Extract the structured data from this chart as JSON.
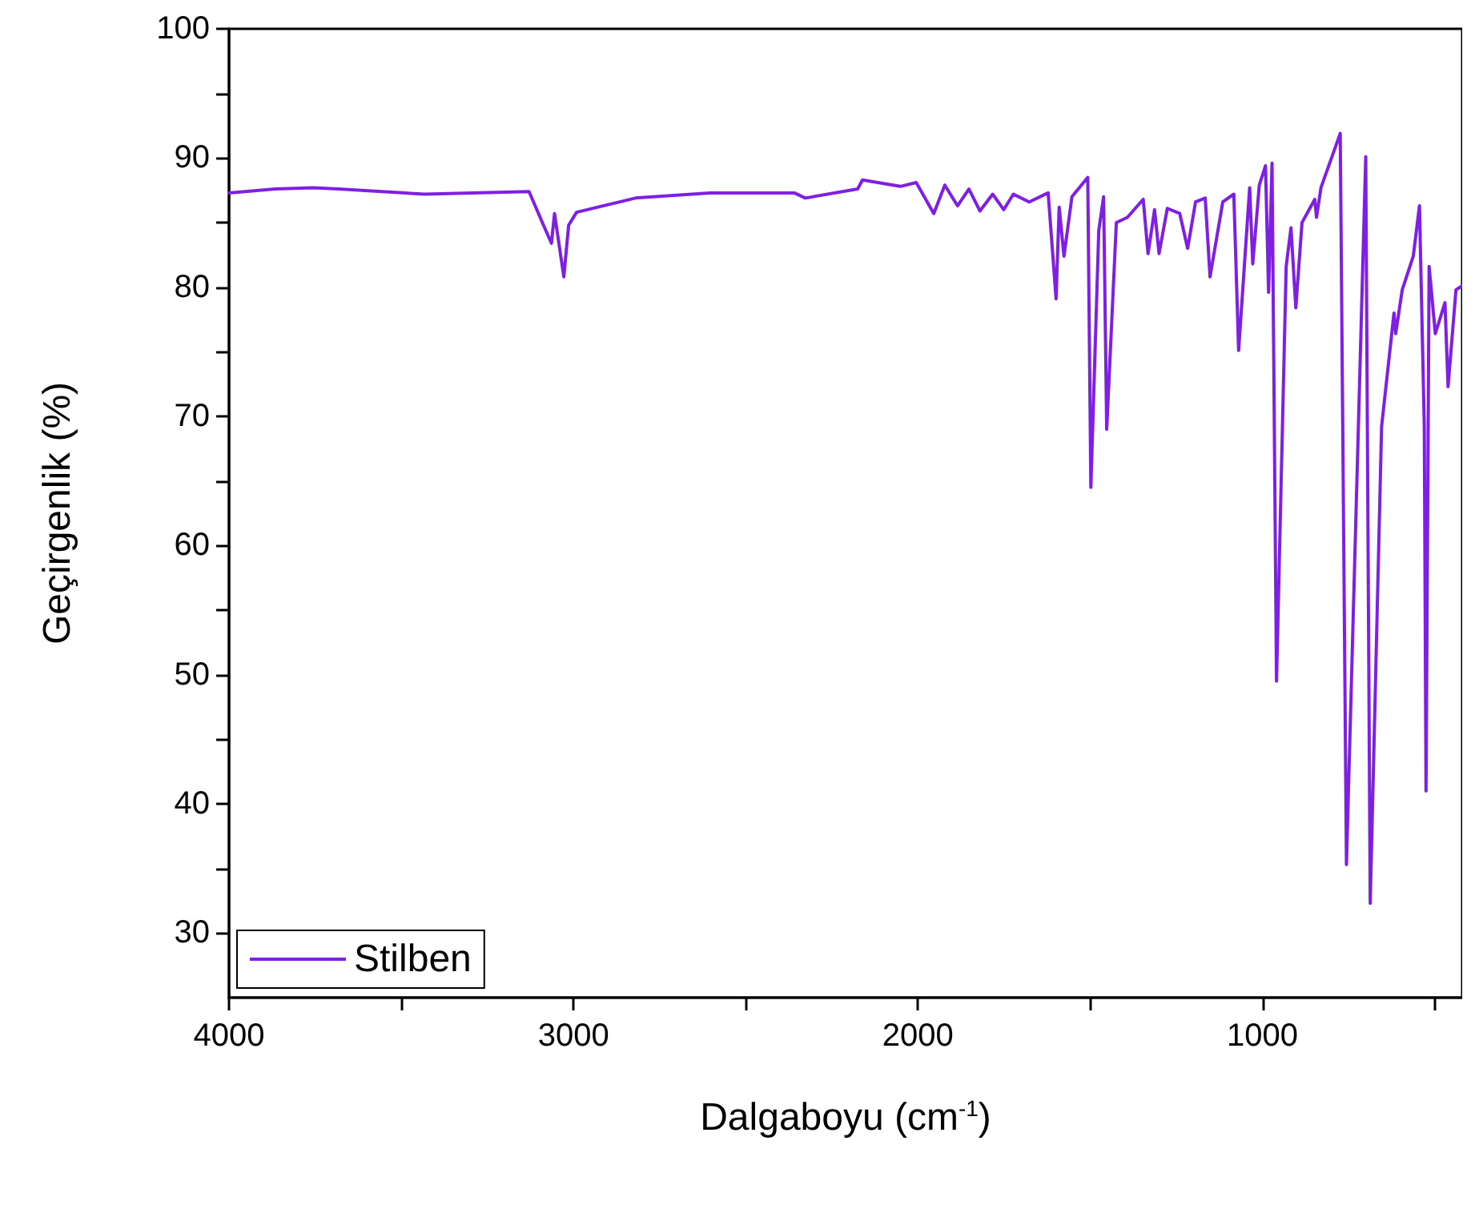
{
  "chart_data": {
    "type": "line",
    "xlabel": "Dalgaboyu (cm$^{-1}$)",
    "ylabel": "Geçirgenlik (%)",
    "xlim": [
      4000,
      420
    ],
    "ylim": [
      25,
      100
    ],
    "xticks": [
      4000,
      {
        "value": 3500,
        "label": null
      },
      3000,
      {
        "value": 2500,
        "label": null
      },
      2000,
      {
        "value": 1500,
        "label": null
      },
      1000,
      {
        "value": 500,
        "label": null
      }
    ],
    "yticks": [
      30,
      {
        "value": 35,
        "label": null
      },
      40,
      {
        "value": 45,
        "label": null
      },
      50,
      {
        "value": 55,
        "label": null
      },
      60,
      {
        "value": 65,
        "label": null
      },
      70,
      {
        "value": 75,
        "label": null
      },
      80,
      {
        "value": 85,
        "label": null
      },
      90,
      {
        "value": 95,
        "label": null
      },
      100
    ],
    "grid": false,
    "legend": "bottom left",
    "marker": "none",
    "line_style": "solid",
    "series": [
      {
        "name": "Stilben",
        "color": "#7f1fe6",
        "x": [
          4000,
          3866,
          3755,
          3682,
          3433,
          3129,
          3087,
          3064,
          3055,
          3028,
          3014,
          2991,
          2820,
          2604,
          2359,
          2327,
          2175,
          2161,
          2051,
          2005,
          1954,
          1922,
          1885,
          1852,
          1820,
          1783,
          1751,
          1723,
          1677,
          1622,
          1599,
          1590,
          1576,
          1553,
          1507,
          1498,
          1475,
          1461,
          1452,
          1424,
          1392,
          1346,
          1332,
          1313,
          1300,
          1276,
          1240,
          1217,
          1194,
          1166,
          1152,
          1115,
          1083,
          1069,
          1037,
          1028,
          1009,
          991,
          982,
          972,
          959,
          931,
          917,
          903,
          885,
          848,
          843,
          830,
          774,
          756,
          700,
          687,
          654,
          618,
          613,
          594,
          562,
          544,
          530,
          525,
          516,
          498,
          470,
          461,
          438,
          420
        ],
        "values": [
          87.3,
          87.6,
          87.7,
          87.6,
          87.2,
          87.4,
          84.8,
          83.4,
          85.7,
          80.8,
          84.8,
          85.8,
          86.9,
          87.3,
          87.3,
          86.9,
          87.6,
          88.3,
          87.8,
          88.1,
          85.7,
          87.9,
          86.3,
          87.6,
          85.9,
          87.2,
          86.0,
          87.2,
          86.6,
          87.3,
          79.1,
          86.2,
          82.4,
          87.0,
          88.5,
          64.5,
          84.4,
          87.0,
          69.0,
          85.0,
          85.4,
          86.8,
          82.6,
          86.0,
          82.6,
          86.1,
          85.7,
          83.0,
          86.6,
          86.9,
          80.8,
          86.6,
          87.2,
          75.1,
          87.7,
          81.8,
          87.9,
          89.4,
          79.6,
          89.6,
          49.5,
          81.6,
          84.6,
          78.4,
          85.0,
          86.8,
          85.4,
          87.7,
          91.9,
          35.3,
          90.1,
          32.3,
          69.2,
          78.0,
          76.4,
          79.8,
          82.4,
          86.3,
          69.2,
          41.0,
          81.6,
          76.4,
          78.8,
          72.3,
          79.8,
          80.1
        ]
      }
    ]
  }
}
